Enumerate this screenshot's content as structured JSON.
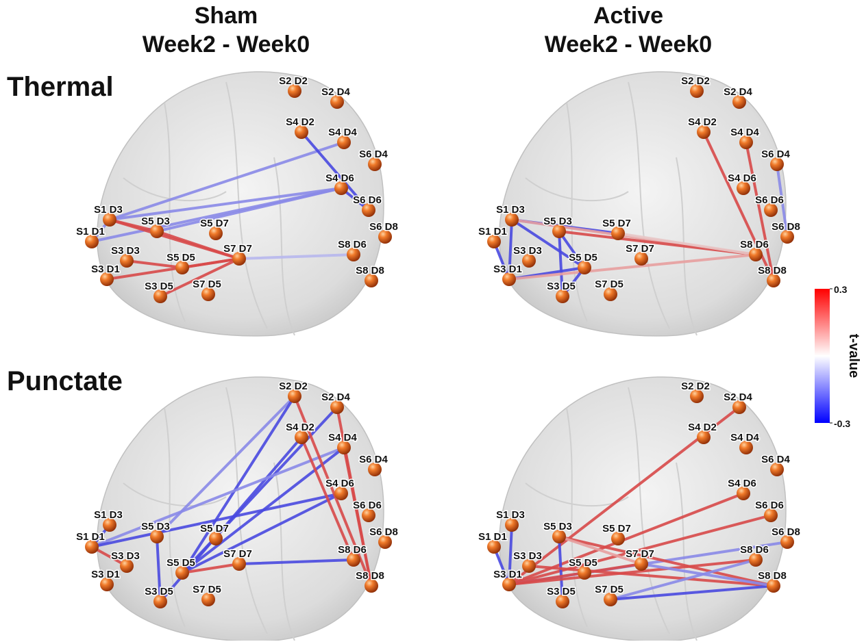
{
  "headers": [
    {
      "title": "Sham",
      "subtitle": "Week2 - Week0"
    },
    {
      "title": "Active",
      "subtitle": "Week2 - Week0"
    }
  ],
  "rows": [
    {
      "label": "Thermal",
      "panels": [
        {
          "nodes": [
            "S2 D2",
            "S2 D4",
            "S4 D2",
            "S4 D4",
            "S6 D4",
            "S4 D6",
            "S6 D6",
            "S6 D8",
            "S1 D3",
            "S5 D3",
            "S5 D7",
            "S1 D1",
            "S3 D3",
            "S5 D5",
            "S7 D7",
            "S8 D6",
            "S8 D8",
            "S3 D1",
            "S3 D5",
            "S7 D5"
          ]
        },
        {
          "nodes": [
            "S2 D2",
            "S2 D4",
            "S4 D2",
            "S4 D4",
            "S6 D4",
            "S4 D6",
            "S6 D6",
            "S6 D8",
            "S1 D3",
            "S5 D3",
            "S5 D7",
            "S1 D1",
            "S3 D3",
            "S5 D5",
            "S7 D7",
            "S8 D6",
            "S8 D8",
            "S3 D1",
            "S3 D5",
            "S7 D5"
          ]
        }
      ]
    },
    {
      "label": "Punctate",
      "panels": [
        {
          "nodes": [
            "S2 D2",
            "S2 D4",
            "S4 D2",
            "S4 D4",
            "S6 D4",
            "S4 D6",
            "S6 D6",
            "S6 D8",
            "S1 D3",
            "S5 D3",
            "S5 D7",
            "S1 D1",
            "S3 D3",
            "S5 D5",
            "S7 D7",
            "S8 D6",
            "S8 D8",
            "S3 D1",
            "S3 D5",
            "S7 D5"
          ]
        },
        {
          "nodes": [
            "S2 D2",
            "S2 D4",
            "S4 D2",
            "S4 D4",
            "S6 D4",
            "S4 D6",
            "S6 D6",
            "S6 D8",
            "S1 D3",
            "S5 D3",
            "S5 D7",
            "S1 D1",
            "S3 D3",
            "S5 D5",
            "S7 D7",
            "S8 D6",
            "S8 D8",
            "S3 D1",
            "S3 D5",
            "S7 D5"
          ]
        }
      ]
    }
  ],
  "colorbar": {
    "label": "t-value",
    "ticks": [
      0.3,
      -0.3
    ]
  }
}
